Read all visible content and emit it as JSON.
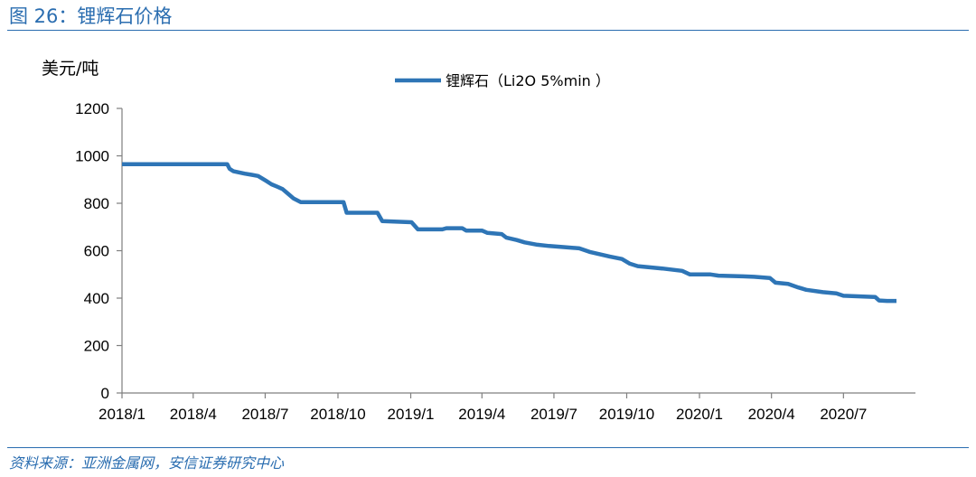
{
  "figure": {
    "title": "图 26：锂辉石价格",
    "source": "资料来源：亚洲金属网，安信证券研究中心"
  },
  "chart_data": {
    "type": "line",
    "ylabel": "美元/吨",
    "ylim": [
      0,
      1200
    ],
    "yticks": [
      0,
      200,
      400,
      600,
      800,
      1000,
      1200
    ],
    "xlim": [
      "2018-01-01",
      "2020-09-30"
    ],
    "xticks": [
      {
        "date": "2018-01-01",
        "label": "2018/1"
      },
      {
        "date": "2018-04-01",
        "label": "2018/4"
      },
      {
        "date": "2018-07-01",
        "label": "2018/7"
      },
      {
        "date": "2018-10-01",
        "label": "2018/10"
      },
      {
        "date": "2019-01-01",
        "label": "2019/1"
      },
      {
        "date": "2019-04-01",
        "label": "2019/4"
      },
      {
        "date": "2019-07-01",
        "label": "2019/7"
      },
      {
        "date": "2019-10-01",
        "label": "2019/10"
      },
      {
        "date": "2020-01-01",
        "label": "2020/1"
      },
      {
        "date": "2020-04-01",
        "label": "2020/4"
      },
      {
        "date": "2020-07-01",
        "label": "2020/7"
      }
    ],
    "grid": false,
    "legend_position": "top-center",
    "color": "#2e75b6",
    "series": [
      {
        "name": "锂辉石（Li2O 5%min ）",
        "points": [
          [
            "2018-01-01",
            965
          ],
          [
            "2018-05-14",
            965
          ],
          [
            "2018-05-17",
            945
          ],
          [
            "2018-05-22",
            935
          ],
          [
            "2018-06-05",
            925
          ],
          [
            "2018-06-14",
            920
          ],
          [
            "2018-06-22",
            915
          ],
          [
            "2018-07-02",
            895
          ],
          [
            "2018-07-09",
            880
          ],
          [
            "2018-07-16",
            870
          ],
          [
            "2018-07-23",
            860
          ],
          [
            "2018-07-30",
            840
          ],
          [
            "2018-08-06",
            820
          ],
          [
            "2018-08-15",
            805
          ],
          [
            "2018-10-08",
            805
          ],
          [
            "2018-10-12",
            760
          ],
          [
            "2018-11-20",
            760
          ],
          [
            "2018-11-26",
            725
          ],
          [
            "2019-01-02",
            720
          ],
          [
            "2019-01-10",
            690
          ],
          [
            "2019-02-10",
            690
          ],
          [
            "2019-02-15",
            695
          ],
          [
            "2019-03-07",
            695
          ],
          [
            "2019-03-12",
            685
          ],
          [
            "2019-04-01",
            685
          ],
          [
            "2019-04-08",
            675
          ],
          [
            "2019-04-26",
            670
          ],
          [
            "2019-05-02",
            655
          ],
          [
            "2019-05-15",
            645
          ],
          [
            "2019-05-25",
            635
          ],
          [
            "2019-06-10",
            625
          ],
          [
            "2019-06-25",
            620
          ],
          [
            "2019-07-15",
            615
          ],
          [
            "2019-08-02",
            610
          ],
          [
            "2019-08-15",
            595
          ],
          [
            "2019-08-28",
            585
          ],
          [
            "2019-09-10",
            575
          ],
          [
            "2019-09-25",
            565
          ],
          [
            "2019-10-05",
            545
          ],
          [
            "2019-10-15",
            535
          ],
          [
            "2019-11-15",
            525
          ],
          [
            "2019-12-10",
            515
          ],
          [
            "2019-12-20",
            500
          ],
          [
            "2020-01-15",
            500
          ],
          [
            "2020-01-25",
            495
          ],
          [
            "2020-02-25",
            492
          ],
          [
            "2020-03-10",
            490
          ],
          [
            "2020-03-30",
            485
          ],
          [
            "2020-04-06",
            465
          ],
          [
            "2020-04-22",
            460
          ],
          [
            "2020-05-05",
            445
          ],
          [
            "2020-05-15",
            435
          ],
          [
            "2020-06-05",
            425
          ],
          [
            "2020-06-22",
            420
          ],
          [
            "2020-07-01",
            410
          ],
          [
            "2020-08-10",
            405
          ],
          [
            "2020-08-15",
            390
          ],
          [
            "2020-08-25",
            388
          ],
          [
            "2020-09-06",
            388
          ]
        ]
      }
    ]
  }
}
